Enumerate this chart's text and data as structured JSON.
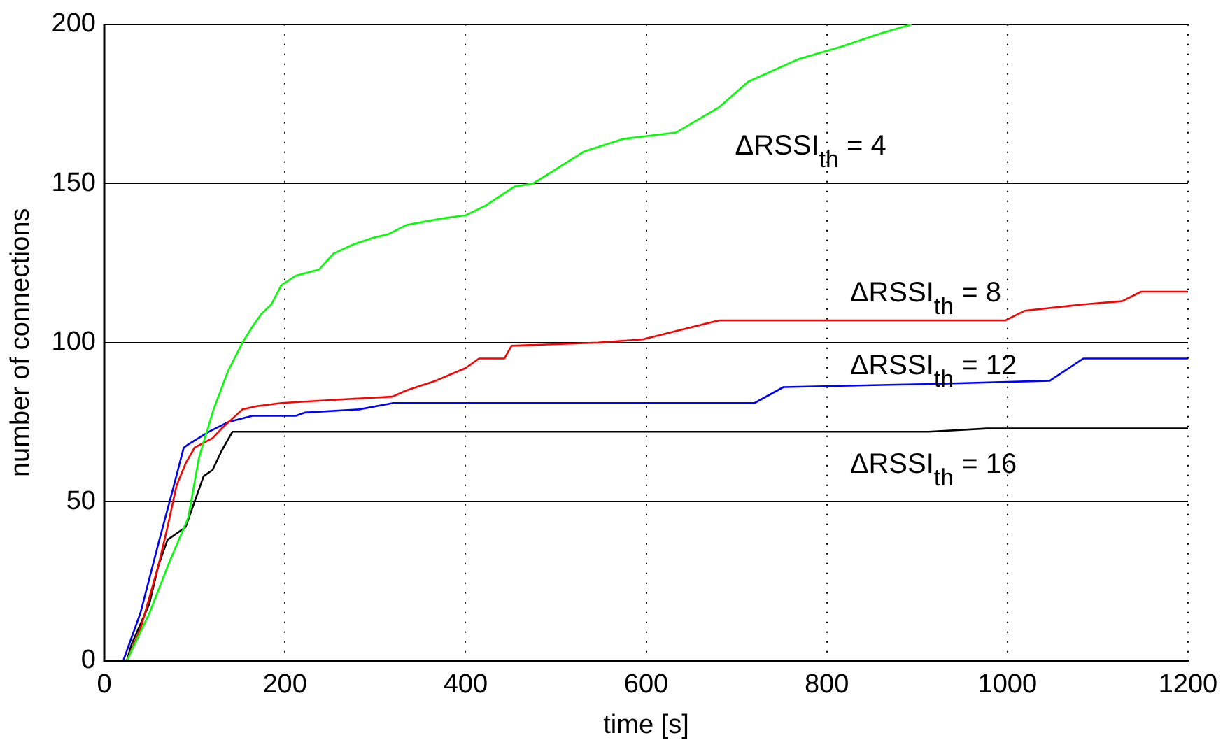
{
  "chart_data": {
    "type": "line",
    "xlabel": "time [s]",
    "ylabel": "number of connections",
    "xlim": [
      0,
      1200
    ],
    "ylim": [
      0,
      200
    ],
    "xticks": [
      0,
      200,
      400,
      600,
      800,
      1000,
      1200
    ],
    "yticks": [
      0,
      50,
      100,
      150,
      200
    ],
    "grid": true,
    "legend": false,
    "marker": "none",
    "line_style": "solid",
    "series": [
      {
        "name": "ΔRSSI$_{th}$ = 4",
        "color": "#00ff00",
        "x": [
          0,
          25,
          30,
          50,
          72,
          93,
          105,
          121,
          137,
          153,
          164,
          174,
          185,
          196,
          212,
          238,
          254,
          277,
          298,
          314,
          335,
          374,
          400,
          422,
          454,
          475,
          531,
          575,
          633,
          681,
          713,
          768,
          816,
          858,
          894
        ],
        "values": [
          0,
          0,
          3,
          15,
          31,
          45,
          64,
          79,
          91,
          100,
          105,
          109,
          112,
          118,
          121,
          123,
          128,
          131,
          133,
          134,
          137,
          139,
          140,
          143,
          149,
          150,
          160,
          164,
          166,
          174,
          182,
          189,
          193,
          197,
          200
        ]
      },
      {
        "name": "ΔRSSI$_{th}$ = 8",
        "color": "#ff0000",
        "x": [
          0,
          25,
          40,
          60,
          70,
          80,
          90,
          100,
          120,
          130,
          153,
          169,
          196,
          254,
          319,
          335,
          367,
          400,
          415,
          443,
          451,
          547,
          596,
          681,
          998,
          1019,
          1084,
          1127,
          1148,
          1200
        ],
        "values": [
          0,
          0,
          10,
          30,
          42,
          55,
          62,
          67,
          70,
          73,
          79,
          80,
          81,
          82,
          83,
          85,
          88,
          92,
          95,
          95,
          99,
          100,
          101,
          107,
          107,
          110,
          112,
          113,
          116,
          116
        ]
      },
      {
        "name": "ΔRSSI$_{th}$ = 12",
        "color": "#0000ff",
        "x": [
          0,
          21,
          40,
          61,
          77,
          88,
          93,
          116,
          137,
          164,
          212,
          222,
          282,
          320,
          400,
          720,
          752,
          918,
          1047,
          1084,
          1200
        ],
        "values": [
          0,
          0,
          15,
          38,
          55,
          67,
          68,
          72,
          75,
          77,
          77,
          78,
          79,
          81,
          81,
          81,
          86,
          87,
          88,
          95,
          95
        ]
      },
      {
        "name": "ΔRSSI$_{th}$ = 16",
        "color": "#000000",
        "x": [
          0,
          25,
          30,
          50,
          60,
          70,
          80,
          90,
          100,
          110,
          120,
          130,
          142,
          913,
          977,
          1200
        ],
        "values": [
          0,
          0,
          5,
          18,
          30,
          38,
          40,
          42,
          50,
          58,
          60,
          66,
          72,
          72,
          73,
          73
        ]
      }
    ]
  }
}
